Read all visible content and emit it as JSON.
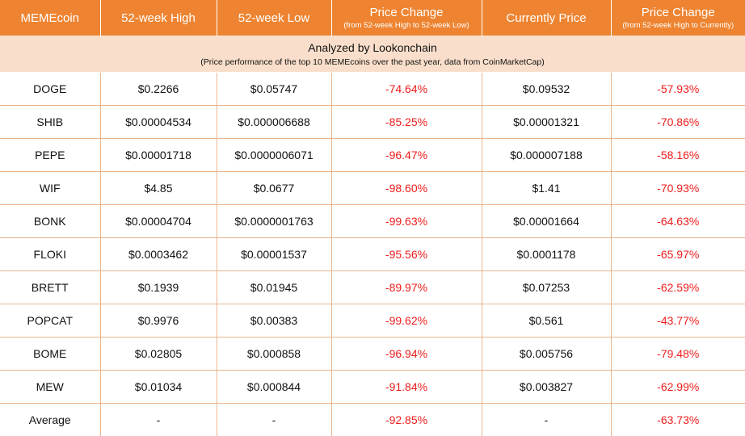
{
  "headers": [
    {
      "title": "MEMEcoin",
      "sub": ""
    },
    {
      "title": "52-week High",
      "sub": ""
    },
    {
      "title": "52-week Low",
      "sub": ""
    },
    {
      "title": "Price Change",
      "sub": "(from 52-week High to 52-week Low)"
    },
    {
      "title": "Currently Price",
      "sub": ""
    },
    {
      "title": "Price Change",
      "sub": "(from 52-week High to Currently)"
    }
  ],
  "banner": {
    "title": "Analyzed by Lookonchain",
    "subtitle": "(Price performance of the top 10 MEMEcoins over the past year, data from CoinMarketCap)"
  },
  "rows": [
    [
      "DOGE",
      "$0.2266",
      "$0.05747",
      "-74.64%",
      "$0.09532",
      "-57.93%"
    ],
    [
      "SHIB",
      "$0.00004534",
      "$0.000006688",
      "-85.25%",
      "$0.00001321",
      "-70.86%"
    ],
    [
      "PEPE",
      "$0.00001718",
      "$0.0000006071",
      "-96.47%",
      "$0.000007188",
      "-58.16%"
    ],
    [
      "WIF",
      "$4.85",
      "$0.0677",
      "-98.60%",
      "$1.41",
      "-70.93%"
    ],
    [
      "BONK",
      "$0.00004704",
      "$0.0000001763",
      "-99.63%",
      "$0.00001664",
      "-64.63%"
    ],
    [
      "FLOKI",
      "$0.0003462",
      "$0.00001537",
      "-95.56%",
      "$0.0001178",
      "-65.97%"
    ],
    [
      "BRETT",
      "$0.1939",
      "$0.01945",
      "-89.97%",
      "$0.07253",
      "-62.59%"
    ],
    [
      "POPCAT",
      "$0.9976",
      "$0.00383",
      "-99.62%",
      "$0.561",
      "-43.77%"
    ],
    [
      "BOME",
      "$0.02805",
      "$0.000858",
      "-96.94%",
      "$0.005756",
      "-79.48%"
    ],
    [
      "MEW",
      "$0.01034",
      "$0.000844",
      "-91.84%",
      "$0.003827",
      "-62.99%"
    ],
    [
      "Average",
      "-",
      "-",
      "-92.85%",
      "-",
      "-63.73%"
    ]
  ],
  "colors": {
    "header_bg": "#ee8431",
    "banner_bg": "#f9dfcb",
    "negative_text": "#ee1c1c",
    "grid_line": "#e9b48b"
  }
}
